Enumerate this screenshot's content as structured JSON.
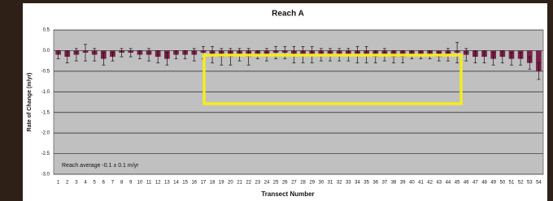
{
  "chart_data": {
    "type": "bar",
    "title": "Reach A",
    "x_label": "Transect Number",
    "y_label": "Rate of Change (m/yr)",
    "annotation": "Reach average -0.1 ± 0.1 m/yr",
    "categories": [
      "1",
      "2",
      "3",
      "4",
      "5",
      "6",
      "7",
      "8",
      "9",
      "10",
      "11",
      "12",
      "13",
      "14",
      "15",
      "16",
      "17",
      "18",
      "19",
      "20",
      "21",
      "22",
      "23",
      "24",
      "25",
      "26",
      "27",
      "28",
      "29",
      "30",
      "31",
      "32",
      "33",
      "34",
      "35",
      "36",
      "37",
      "38",
      "39",
      "40",
      "41",
      "42",
      "43",
      "44",
      "45",
      "46",
      "47",
      "48",
      "49",
      "50",
      "51",
      "52",
      "53",
      "54"
    ],
    "values": [
      -0.1,
      -0.15,
      -0.1,
      -0.05,
      -0.1,
      -0.2,
      -0.15,
      -0.05,
      -0.05,
      -0.1,
      -0.1,
      -0.15,
      -0.2,
      -0.1,
      -0.1,
      -0.1,
      -0.05,
      -0.1,
      -0.15,
      -0.15,
      -0.1,
      -0.15,
      -0.1,
      -0.1,
      -0.05,
      -0.05,
      -0.1,
      -0.1,
      -0.1,
      -0.1,
      -0.1,
      -0.1,
      -0.1,
      -0.1,
      -0.1,
      -0.15,
      -0.1,
      -0.15,
      -0.15,
      -0.1,
      -0.1,
      -0.1,
      -0.15,
      -0.1,
      -0.05,
      -0.1,
      -0.15,
      -0.15,
      -0.2,
      -0.15,
      -0.2,
      -0.2,
      -0.3,
      -0.5
    ],
    "errors": [
      0.1,
      0.15,
      0.15,
      0.2,
      0.15,
      0.15,
      0.1,
      0.1,
      0.1,
      0.1,
      0.15,
      0.15,
      0.15,
      0.1,
      0.1,
      0.15,
      0.15,
      0.2,
      0.2,
      0.2,
      0.15,
      0.2,
      0.1,
      0.15,
      0.15,
      0.15,
      0.2,
      0.2,
      0.2,
      0.15,
      0.15,
      0.15,
      0.15,
      0.2,
      0.2,
      0.15,
      0.15,
      0.15,
      0.15,
      0.1,
      0.1,
      0.1,
      0.1,
      0.15,
      0.25,
      0.15,
      0.15,
      0.15,
      0.15,
      0.15,
      0.15,
      0.15,
      0.15,
      0.2
    ],
    "color": "#7a2048",
    "ylim": [
      -3.0,
      0.5
    ],
    "yticks": [
      {
        "value": -3.0,
        "label": "-3.0"
      },
      -2.5,
      {
        "value": -2.0,
        "label": "-2.0"
      },
      -1.5,
      {
        "value": -1.0,
        "label": "-1.0"
      },
      -0.5,
      {
        "value": 0.0,
        "label": "0.0"
      },
      0.5
    ],
    "grid": true
  }
}
